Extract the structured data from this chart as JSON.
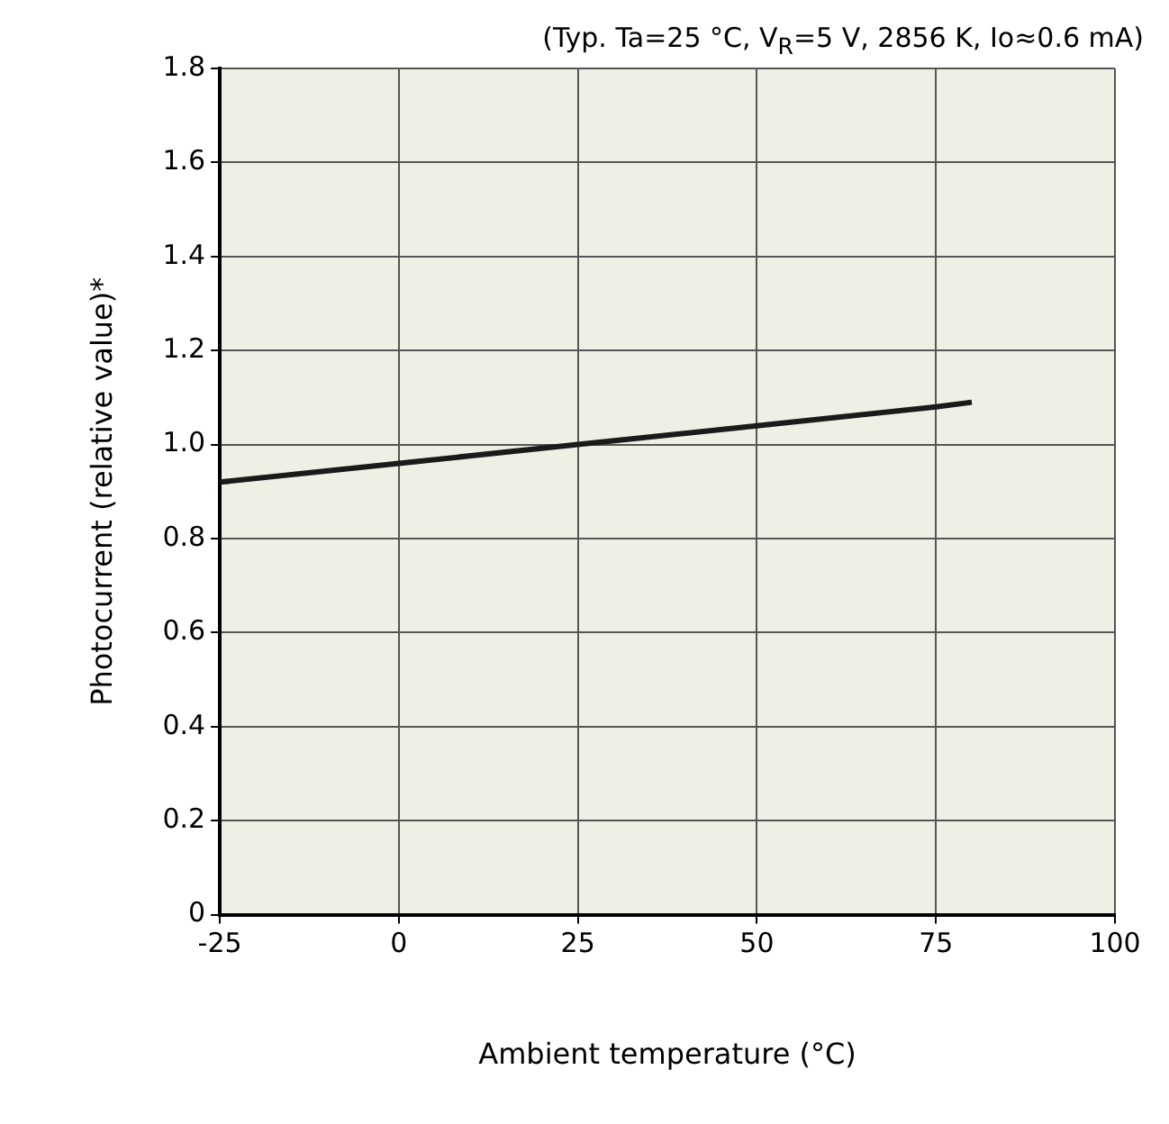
{
  "chart_data": {
    "type": "line",
    "subtitle": "(Typ. Ta=25 °C, V$_{R}$=5 V, 2856 K, Io≈0.6 mA)",
    "xlabel": "Ambient temperature (°C)",
    "ylabel": "Photocurrent (relative value)*",
    "x": [
      -25,
      0,
      25,
      50,
      75,
      80
    ],
    "series": [
      {
        "color": "#1a1a1a",
        "values": [
          0.92,
          0.96,
          1.0,
          1.04,
          1.08,
          1.09
        ]
      }
    ],
    "xlim": [
      -25,
      100
    ],
    "xticks": [
      -25,
      0,
      25,
      50,
      75,
      100
    ],
    "ylim": [
      0,
      1.8
    ],
    "yticks": [
      0,
      0.2,
      0.4,
      0.6,
      0.8,
      {
        "value": 1,
        "label": "1.0"
      },
      1.2,
      1.4,
      1.6,
      1.8
    ],
    "grid": true,
    "legend": false,
    "marker": "none",
    "line_style": "solid"
  }
}
